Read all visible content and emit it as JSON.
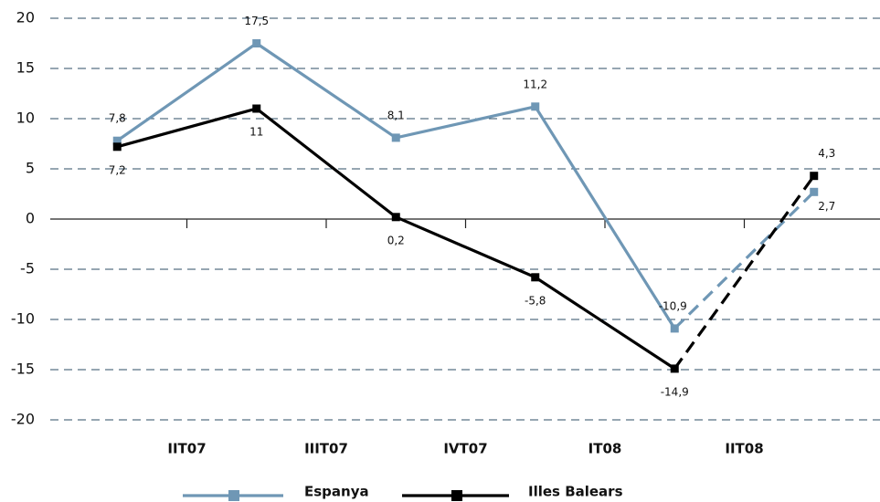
{
  "chart_data": {
    "type": "line",
    "categories": [
      "IIT07",
      "IIIT07",
      "IVT07",
      "IT08",
      "IIT08",
      null
    ],
    "series": [
      {
        "name": "Espanya",
        "color": "#6f97b5",
        "values": [
          7.8,
          17.5,
          8.1,
          11.2,
          -10.9,
          2.7
        ],
        "value_labels": [
          "7,8",
          "17,5",
          "8,1",
          "11,2",
          "-10,9",
          "2,7"
        ]
      },
      {
        "name": "Illes Balears",
        "color": "#000000",
        "values": [
          7.2,
          11,
          0.2,
          -5.8,
          -14.9,
          4.3
        ],
        "value_labels": [
          "7,2",
          "11",
          "0,2",
          "-5,8",
          "-14,9",
          "4,3"
        ]
      }
    ],
    "ylim": [
      -20,
      20
    ],
    "yticks": [
      -20,
      -15,
      -10,
      -5,
      0,
      5,
      10,
      15,
      20
    ],
    "grid": true,
    "legend": "bottom"
  }
}
